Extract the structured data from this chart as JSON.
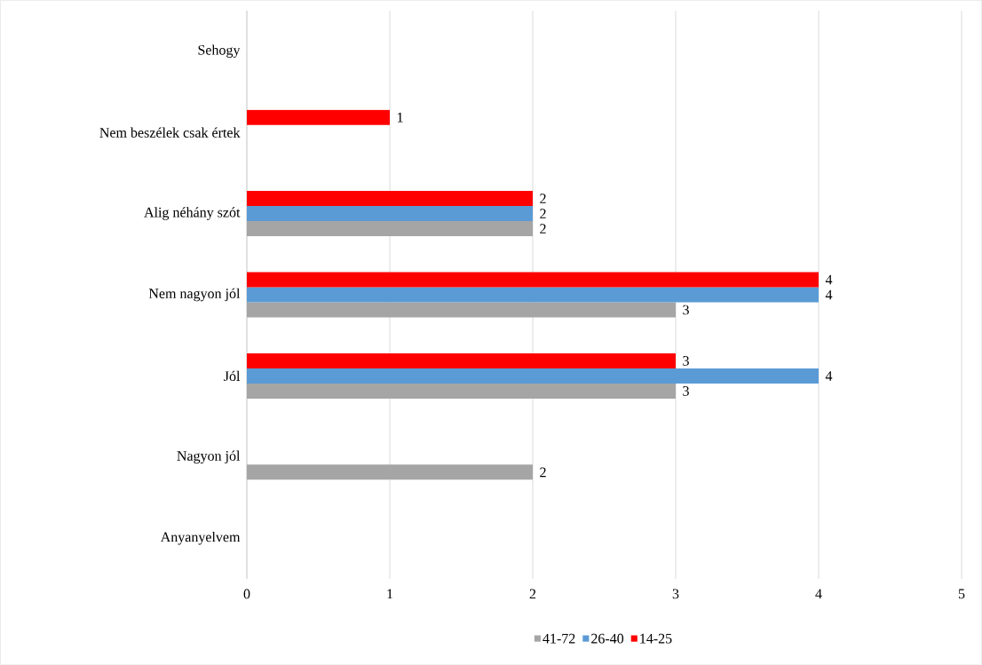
{
  "chart_data": {
    "type": "bar",
    "orientation": "horizontal",
    "categories": [
      "Sehogy",
      "Nem beszélek csak értek",
      "Alig néhány szót",
      "Nem nagyon jól",
      "Jól",
      "Nagyon jól",
      "Anyanyelvem"
    ],
    "series": [
      {
        "name": "41-72",
        "color": "#a5a5a5",
        "values": [
          null,
          null,
          2,
          3,
          3,
          2,
          null
        ]
      },
      {
        "name": "26-40",
        "color": "#5b9bd5",
        "values": [
          null,
          null,
          2,
          4,
          4,
          null,
          null
        ]
      },
      {
        "name": "14-25",
        "color": "#ff0000",
        "values": [
          null,
          1,
          2,
          4,
          3,
          null,
          null
        ]
      }
    ],
    "xlim": [
      0,
      5
    ],
    "xticks": [
      0,
      1,
      2,
      3,
      4,
      5
    ],
    "grid": "x",
    "legend": "bottom",
    "data_labels": true
  }
}
